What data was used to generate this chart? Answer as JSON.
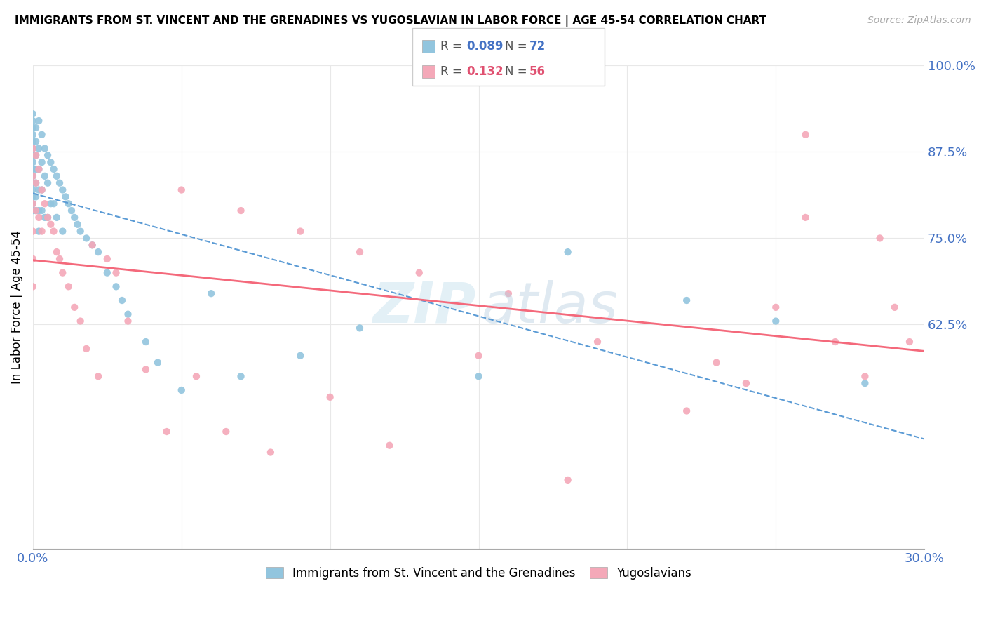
{
  "title": "IMMIGRANTS FROM ST. VINCENT AND THE GRENADINES VS YUGOSLAVIAN IN LABOR FORCE | AGE 45-54 CORRELATION CHART",
  "source": "Source: ZipAtlas.com",
  "ylabel": "In Labor Force | Age 45-54",
  "xlim": [
    0.0,
    0.3
  ],
  "ylim": [
    0.3,
    1.0
  ],
  "blue_R": 0.089,
  "blue_N": 72,
  "pink_R": 0.132,
  "pink_N": 56,
  "blue_color": "#92c5de",
  "pink_color": "#f4a8b8",
  "blue_line_color": "#5b9bd5",
  "pink_line_color": "#f4697b",
  "legend_label_blue": "Immigrants from St. Vincent and the Grenadines",
  "legend_label_pink": "Yugoslavians",
  "blue_dots_x": [
    0.0,
    0.0,
    0.0,
    0.0,
    0.0,
    0.0,
    0.0,
    0.0,
    0.0,
    0.0,
    0.0,
    0.0,
    0.0,
    0.0,
    0.0,
    0.001,
    0.001,
    0.001,
    0.001,
    0.001,
    0.001,
    0.001,
    0.002,
    0.002,
    0.002,
    0.002,
    0.002,
    0.002,
    0.003,
    0.003,
    0.003,
    0.003,
    0.004,
    0.004,
    0.004,
    0.005,
    0.005,
    0.005,
    0.006,
    0.006,
    0.007,
    0.007,
    0.008,
    0.008,
    0.009,
    0.01,
    0.01,
    0.011,
    0.012,
    0.013,
    0.014,
    0.015,
    0.016,
    0.018,
    0.02,
    0.022,
    0.025,
    0.028,
    0.03,
    0.032,
    0.038,
    0.042,
    0.05,
    0.06,
    0.07,
    0.09,
    0.11,
    0.15,
    0.18,
    0.22,
    0.25,
    0.28
  ],
  "blue_dots_y": [
    0.93,
    0.92,
    0.91,
    0.9,
    0.89,
    0.88,
    0.87,
    0.86,
    0.85,
    0.84,
    0.83,
    0.82,
    0.81,
    0.8,
    0.79,
    0.91,
    0.89,
    0.87,
    0.85,
    0.83,
    0.81,
    0.79,
    0.92,
    0.88,
    0.85,
    0.82,
    0.79,
    0.76,
    0.9,
    0.86,
    0.82,
    0.79,
    0.88,
    0.84,
    0.78,
    0.87,
    0.83,
    0.78,
    0.86,
    0.8,
    0.85,
    0.8,
    0.84,
    0.78,
    0.83,
    0.82,
    0.76,
    0.81,
    0.8,
    0.79,
    0.78,
    0.77,
    0.76,
    0.75,
    0.74,
    0.73,
    0.7,
    0.68,
    0.66,
    0.64,
    0.6,
    0.57,
    0.53,
    0.67,
    0.55,
    0.58,
    0.62,
    0.55,
    0.73,
    0.66,
    0.63,
    0.54
  ],
  "pink_dots_x": [
    0.0,
    0.0,
    0.0,
    0.0,
    0.0,
    0.0,
    0.001,
    0.001,
    0.001,
    0.002,
    0.002,
    0.003,
    0.003,
    0.004,
    0.005,
    0.006,
    0.007,
    0.008,
    0.009,
    0.01,
    0.012,
    0.014,
    0.016,
    0.018,
    0.02,
    0.022,
    0.025,
    0.028,
    0.032,
    0.038,
    0.045,
    0.055,
    0.065,
    0.08,
    0.1,
    0.12,
    0.15,
    0.18,
    0.22,
    0.25,
    0.26,
    0.27,
    0.28,
    0.285,
    0.29,
    0.295,
    0.05,
    0.07,
    0.09,
    0.11,
    0.13,
    0.16,
    0.19,
    0.23,
    0.24,
    0.26
  ],
  "pink_dots_y": [
    0.88,
    0.84,
    0.8,
    0.76,
    0.72,
    0.68,
    0.87,
    0.83,
    0.79,
    0.85,
    0.78,
    0.82,
    0.76,
    0.8,
    0.78,
    0.77,
    0.76,
    0.73,
    0.72,
    0.7,
    0.68,
    0.65,
    0.63,
    0.59,
    0.74,
    0.55,
    0.72,
    0.7,
    0.63,
    0.56,
    0.47,
    0.55,
    0.47,
    0.44,
    0.52,
    0.45,
    0.58,
    0.4,
    0.5,
    0.65,
    0.78,
    0.6,
    0.55,
    0.75,
    0.65,
    0.6,
    0.82,
    0.79,
    0.76,
    0.73,
    0.7,
    0.67,
    0.6,
    0.57,
    0.54,
    0.9
  ],
  "ytick_pos": [
    0.625,
    0.75,
    0.875,
    1.0
  ],
  "ytick_labels": [
    "62.5%",
    "75.0%",
    "87.5%",
    "100.0%"
  ]
}
